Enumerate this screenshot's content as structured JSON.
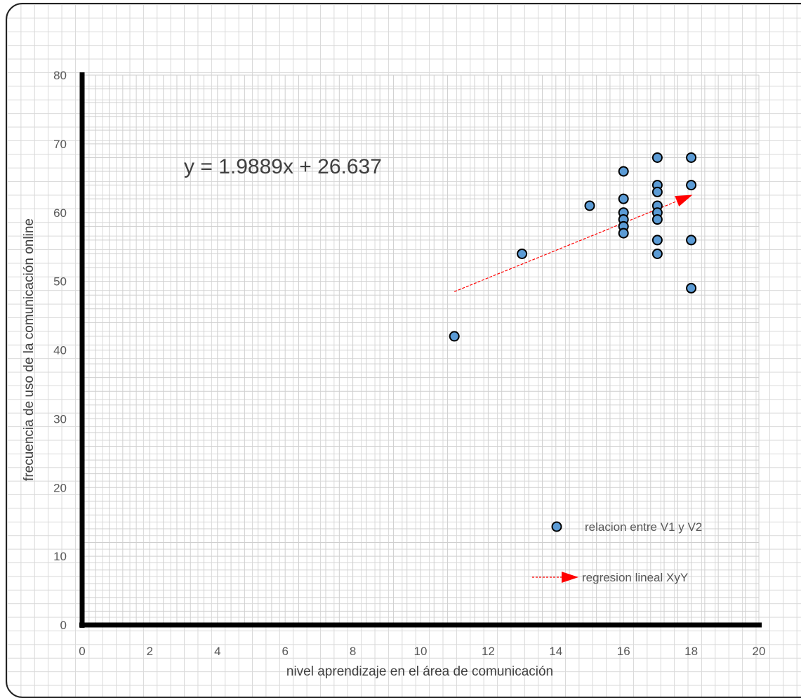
{
  "chart_data": {
    "type": "scatter",
    "xlabel": "nivel aprendizaje en el área de comunicación",
    "ylabel": "frecuencia de uso  de la comunicación online",
    "xlim": [
      0,
      20
    ],
    "ylim": [
      0,
      80
    ],
    "xticks": [
      "0",
      "2",
      "4",
      "6",
      "8",
      "10",
      "12",
      "14",
      "16",
      "18",
      "20"
    ],
    "yticks": [
      "0",
      "10",
      "20",
      "30",
      "40",
      "50",
      "60",
      "70",
      "80"
    ],
    "grid": true,
    "annotation": "y = 1.9889x + 26.637",
    "legend_position": "bottom-right",
    "series": [
      {
        "name": "relacion entre V1 y V2",
        "marker_color": "#5b9bd5",
        "points": [
          {
            "x": 11,
            "y": 42
          },
          {
            "x": 13,
            "y": 54
          },
          {
            "x": 15,
            "y": 61
          },
          {
            "x": 16,
            "y": 66
          },
          {
            "x": 16,
            "y": 62
          },
          {
            "x": 16,
            "y": 60
          },
          {
            "x": 16,
            "y": 59
          },
          {
            "x": 16,
            "y": 58
          },
          {
            "x": 16,
            "y": 57
          },
          {
            "x": 17,
            "y": 68
          },
          {
            "x": 17,
            "y": 64
          },
          {
            "x": 17,
            "y": 63
          },
          {
            "x": 17,
            "y": 61
          },
          {
            "x": 17,
            "y": 60
          },
          {
            "x": 17,
            "y": 59
          },
          {
            "x": 17,
            "y": 56
          },
          {
            "x": 17,
            "y": 54
          },
          {
            "x": 18,
            "y": 68
          },
          {
            "x": 18,
            "y": 64
          },
          {
            "x": 18,
            "y": 56
          },
          {
            "x": 18,
            "y": 49
          }
        ]
      },
      {
        "name": "regresion lineal XyY",
        "line_color": "#ff0000",
        "line_style": "dashed-arrow",
        "from": {
          "x": 11,
          "y": 48.5
        },
        "to": {
          "x": 18,
          "y": 62.5
        }
      }
    ]
  }
}
